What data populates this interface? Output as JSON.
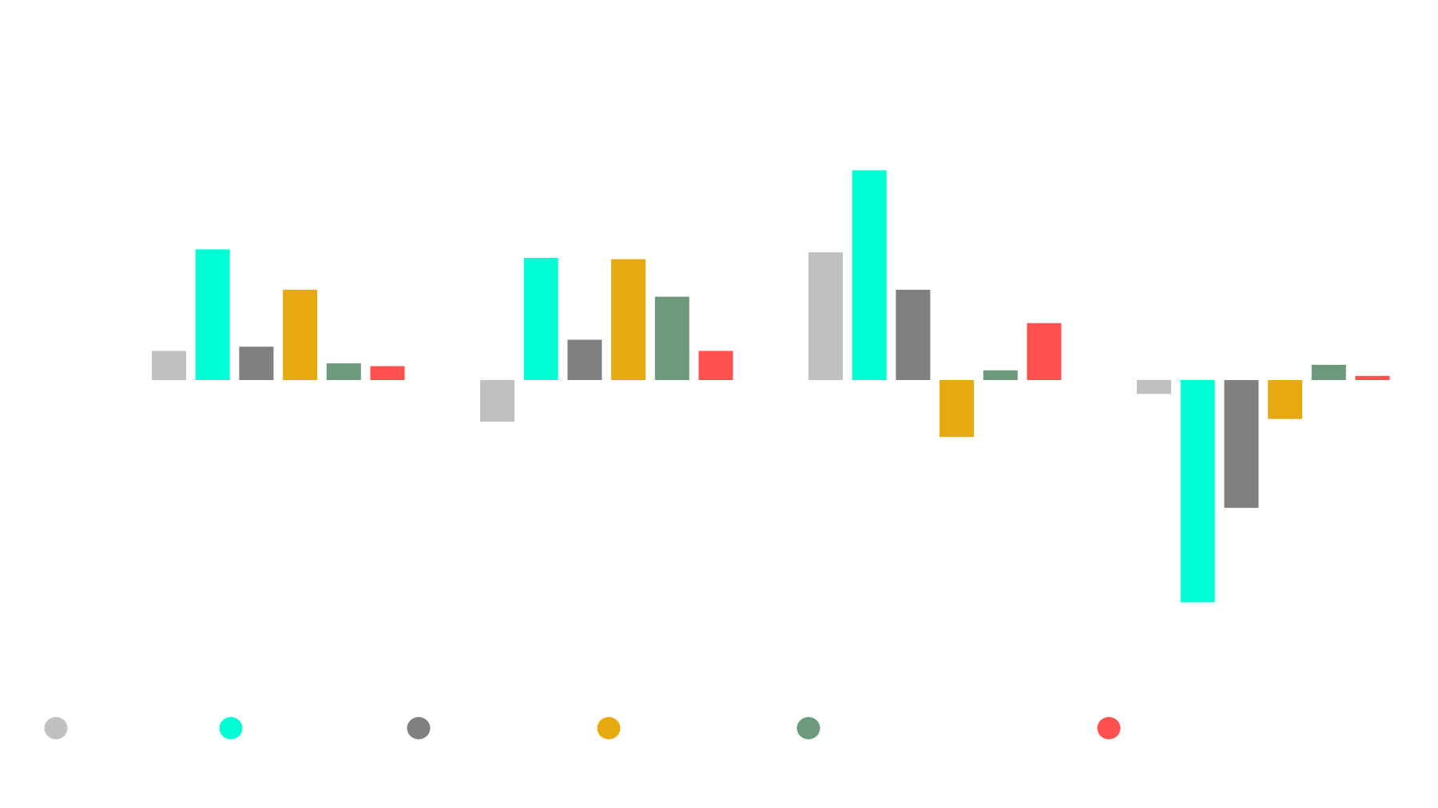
{
  "chart_data": {
    "type": "bar",
    "title": "",
    "xlabel": "",
    "ylabel": "",
    "categories": [
      "",
      "",
      "",
      ""
    ],
    "ylim": [
      -18,
      20
    ],
    "grid": false,
    "legend_position": "bottom",
    "series": [
      {
        "name": "",
        "color": "#c0c0c0",
        "values": [
          2.1,
          -3.0,
          9.2,
          -1.0
        ]
      },
      {
        "name": "",
        "color": "#00ffd5",
        "values": [
          9.4,
          8.8,
          15.1,
          -16.0
        ]
      },
      {
        "name": "",
        "color": "#808080",
        "values": [
          2.4,
          2.9,
          6.5,
          -9.2
        ]
      },
      {
        "name": "",
        "color": "#e6a90f",
        "values": [
          6.5,
          8.7,
          -4.1,
          -2.8
        ]
      },
      {
        "name": "",
        "color": "#6d9a7c",
        "values": [
          1.2,
          6.0,
          0.7,
          1.1
        ]
      },
      {
        "name": "",
        "color": "#ff5050",
        "values": [
          1.0,
          2.1,
          4.1,
          0.3
        ]
      }
    ]
  }
}
